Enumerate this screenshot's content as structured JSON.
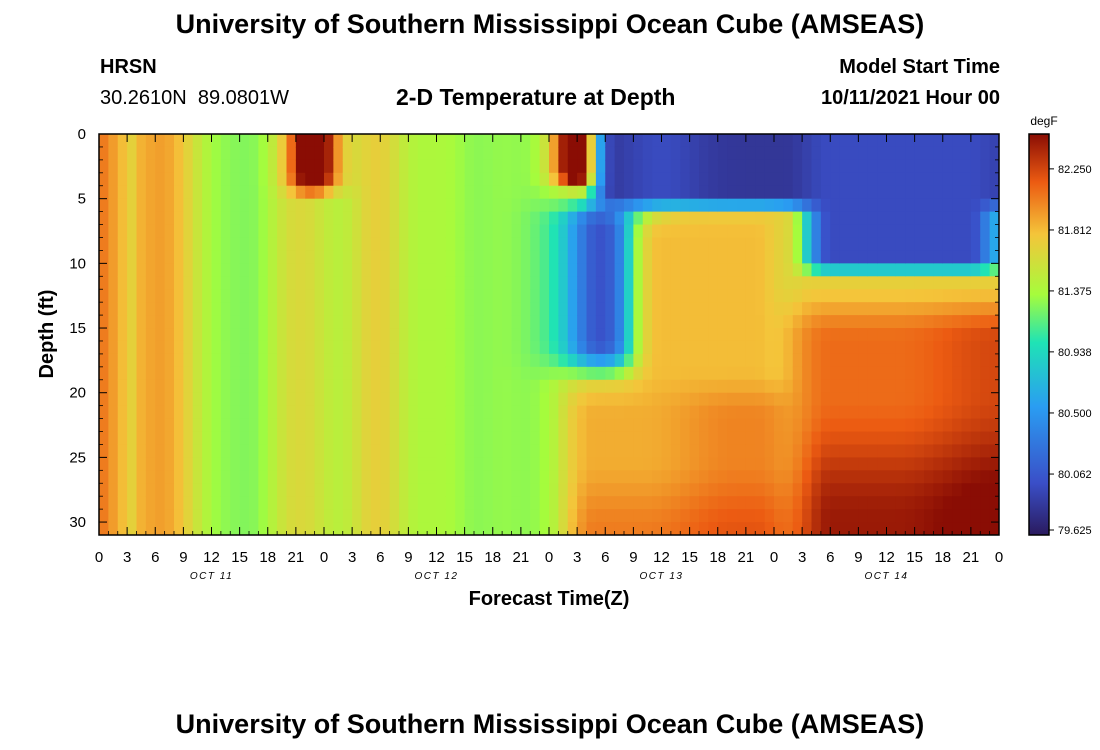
{
  "header": {
    "title": "University of Southern Mississippi Ocean Cube (AMSEAS)",
    "station_name": "HRSN",
    "station_coords": "30.2610N  89.0801W",
    "plot_title": "2-D Temperature at Depth",
    "model_start_label": "Model Start Time",
    "model_start_value": "10/11/2021 Hour 00"
  },
  "footer": {
    "title": "University of Southern Mississippi Ocean Cube (AMSEAS)"
  },
  "chart_data": {
    "type": "heatmap",
    "title": "2-D Temperature at Depth",
    "xlabel": "Forecast Time(Z)",
    "ylabel": "Depth (ft)",
    "x_ticks": [
      "0",
      "3",
      "6",
      "9",
      "12",
      "15",
      "18",
      "21",
      "0",
      "3",
      "6",
      "9",
      "12",
      "15",
      "18",
      "21",
      "0",
      "3",
      "6",
      "9",
      "12",
      "15",
      "18",
      "21",
      "0",
      "3",
      "6",
      "9",
      "12",
      "15",
      "18",
      "21",
      "0"
    ],
    "x_range_hours": [
      0,
      96
    ],
    "day_labels": [
      {
        "label": "OCT 11",
        "hour": 12
      },
      {
        "label": "OCT 12",
        "hour": 36
      },
      {
        "label": "OCT 13",
        "hour": 60
      },
      {
        "label": "OCT 14",
        "hour": 84
      }
    ],
    "y_ticks": [
      "0",
      "5",
      "10",
      "15",
      "20",
      "25",
      "30"
    ],
    "y_range_ft": [
      0,
      31
    ],
    "colorbar": {
      "unit": "degF",
      "min": 79.625,
      "max": 82.5,
      "ticks": [
        "82.250",
        "81.812",
        "81.375",
        "80.938",
        "80.500",
        "80.062",
        "79.625"
      ]
    },
    "colors": {
      "very_cold": "#2a1a5e",
      "cold": "#3a4fc8",
      "cool": "#2a9df2",
      "mid": "#1fe3b5",
      "neutral": "#a6fc3c",
      "warm": "#f4c53a",
      "hot": "#ec5b12",
      "very_hot": "#8a0d04"
    },
    "temperature_field_summary": "Vertically banded warm/cool columns on Oct 11-12; cold (80.0-80.9 degF) water in upper 10-18 ft from Oct 12 21Z through Oct 14; warm (82+ degF) water below 15 ft on Oct 14"
  }
}
